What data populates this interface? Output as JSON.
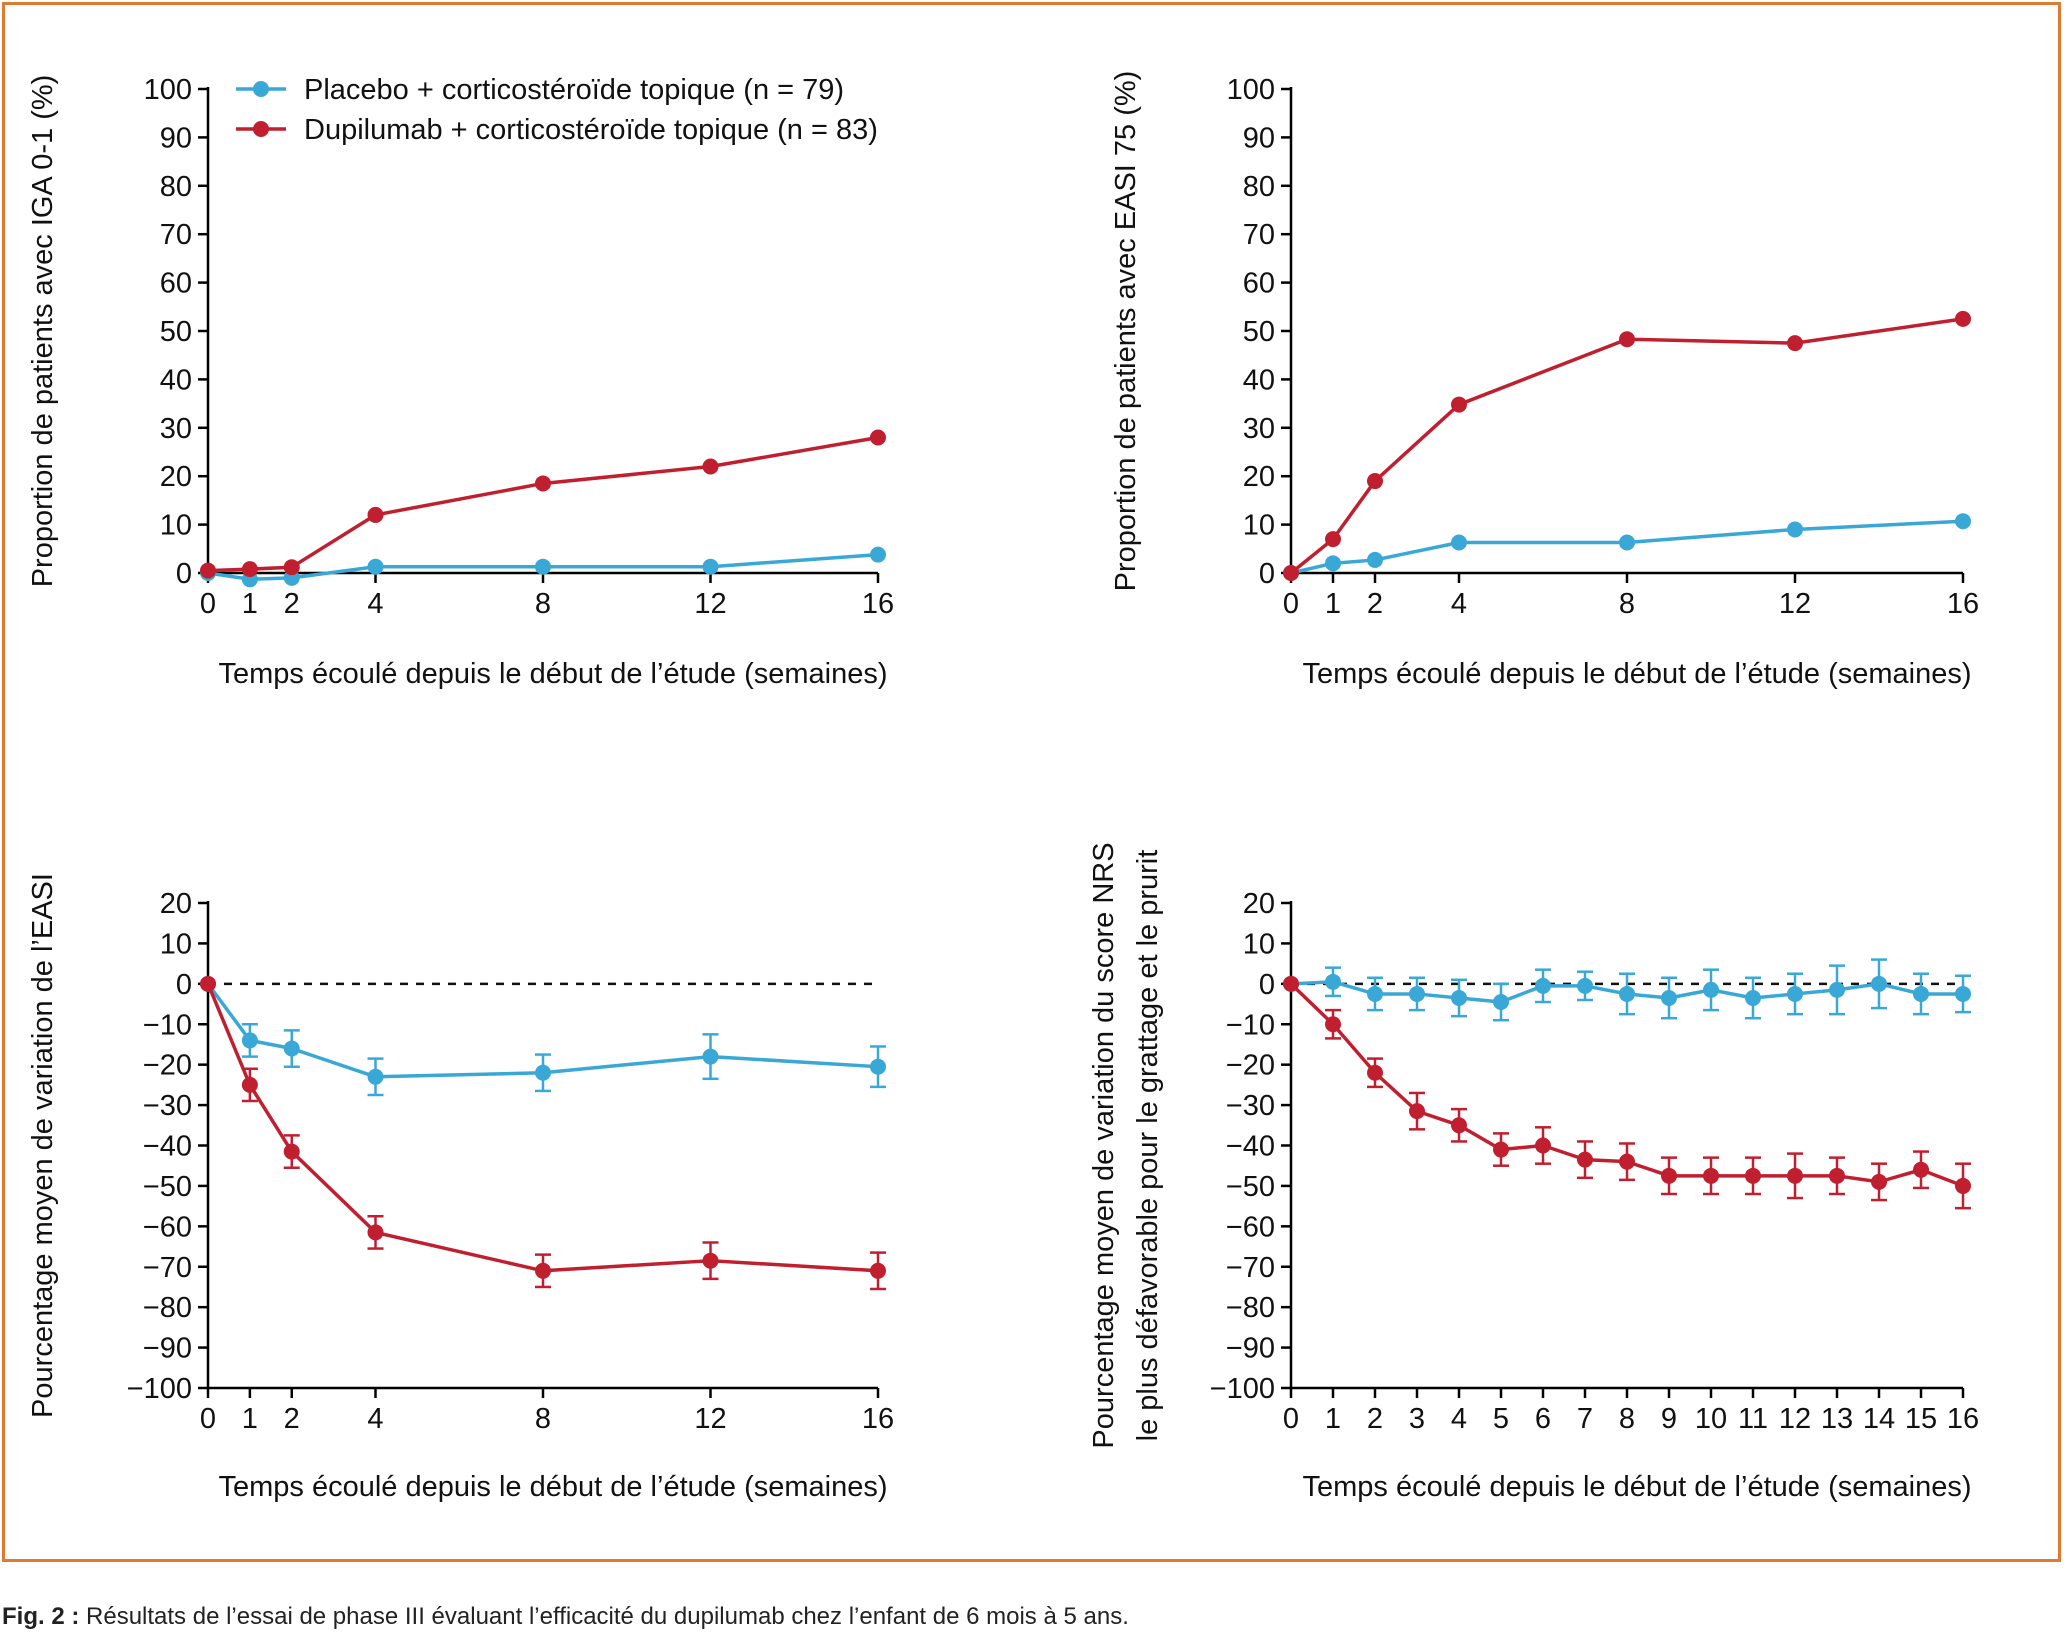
{
  "caption": {
    "label": "Fig. 2 :",
    "text": " Résultats de l’essai de phase III évaluant l’efficacité du dupilumab chez l’enfant de 6 mois à 5 ans."
  },
  "colors": {
    "placebo": "#3aa8d6",
    "dupilumab": "#c01f2f",
    "frame": "#e07a2e",
    "axis": "#000000"
  },
  "legend": [
    {
      "key": "placebo",
      "label": "Placebo + corticostéroïde topique (n = 79)"
    },
    {
      "key": "dupilumab",
      "label": "Dupilumab + corticostéroïde topique (n = 83)"
    }
  ],
  "chart_data": [
    {
      "type": "line",
      "ylabel": [
        "Proportion de patients avec IGA 0-1 (%)"
      ],
      "xlabel": "Temps écoulé depuis le début de l’étude (semaines)",
      "xlim": [
        0,
        16
      ],
      "ylim": [
        0,
        100
      ],
      "xticks": [
        0,
        1,
        2,
        4,
        8,
        12,
        16
      ],
      "yticks": [
        0,
        10,
        20,
        30,
        40,
        50,
        60,
        70,
        80,
        90,
        100
      ],
      "zero_line": false,
      "series": [
        {
          "key": "placebo",
          "x": [
            0,
            1,
            2,
            4,
            8,
            12,
            16
          ],
          "y": [
            0,
            -1.3,
            -1,
            1.3,
            1.3,
            1.3,
            3.8
          ]
        },
        {
          "key": "dupilumab",
          "x": [
            0,
            1,
            2,
            4,
            8,
            12,
            16
          ],
          "y": [
            0.5,
            0.8,
            1.2,
            12,
            18.5,
            22,
            28
          ]
        }
      ]
    },
    {
      "type": "line",
      "ylabel": [
        "Proportion de patients avec EASI 75 (%)"
      ],
      "xlabel": "Temps écoulé depuis le début de l’étude (semaines)",
      "xlim": [
        0,
        16
      ],
      "ylim": [
        0,
        100
      ],
      "xticks": [
        0,
        1,
        2,
        4,
        8,
        12,
        16
      ],
      "yticks": [
        0,
        10,
        20,
        30,
        40,
        50,
        60,
        70,
        80,
        90,
        100
      ],
      "zero_line": false,
      "series": [
        {
          "key": "placebo",
          "x": [
            0,
            1,
            2,
            4,
            8,
            12,
            16
          ],
          "y": [
            0,
            2,
            2.7,
            6.3,
            6.3,
            9,
            10.7
          ]
        },
        {
          "key": "dupilumab",
          "x": [
            0,
            1,
            2,
            4,
            8,
            12,
            16
          ],
          "y": [
            0,
            7,
            19,
            34.8,
            48.3,
            47.5,
            52.5
          ]
        }
      ]
    },
    {
      "type": "line",
      "ylabel": [
        "Pourcentage moyen de variation de l’EASI"
      ],
      "xlabel": "Temps écoulé depuis le début de l’étude (semaines)",
      "xlim": [
        0,
        16
      ],
      "ylim": [
        -100,
        20
      ],
      "xticks": [
        0,
        1,
        2,
        4,
        8,
        12,
        16
      ],
      "yticks": [
        20,
        10,
        0,
        -10,
        -20,
        -30,
        -40,
        -50,
        -60,
        -70,
        -80,
        -90,
        -100
      ],
      "zero_line": true,
      "series": [
        {
          "key": "placebo",
          "x": [
            0,
            1,
            2,
            4,
            8,
            12,
            16
          ],
          "y": [
            0,
            -14,
            -16,
            -23,
            -22,
            -18,
            -20.5
          ],
          "err": [
            0,
            4,
            4.5,
            4.5,
            4.5,
            5.5,
            5
          ]
        },
        {
          "key": "dupilumab",
          "x": [
            0,
            1,
            2,
            4,
            8,
            12,
            16
          ],
          "y": [
            0,
            -25,
            -41.5,
            -61.5,
            -71,
            -68.5,
            -71
          ],
          "err": [
            0,
            4,
            4,
            4,
            4,
            4.5,
            4.5
          ]
        }
      ]
    },
    {
      "type": "line",
      "ylabel": [
        "Pourcentage moyen de variation du score NRS",
        "le plus défavorable pour le grattage et le prurit"
      ],
      "xlabel": "Temps écoulé depuis le début de l’étude (semaines)",
      "xlim": [
        0,
        16
      ],
      "ylim": [
        -100,
        20
      ],
      "xticks": [
        0,
        1,
        2,
        3,
        4,
        5,
        6,
        7,
        8,
        9,
        10,
        11,
        12,
        13,
        14,
        15,
        16
      ],
      "yticks": [
        20,
        10,
        0,
        -10,
        -20,
        -30,
        -40,
        -50,
        -60,
        -70,
        -80,
        -90,
        -100
      ],
      "zero_line": true,
      "series": [
        {
          "key": "placebo",
          "x": [
            0,
            1,
            2,
            3,
            4,
            5,
            6,
            7,
            8,
            9,
            10,
            11,
            12,
            13,
            14,
            15,
            16
          ],
          "y": [
            0,
            0.5,
            -2.5,
            -2.5,
            -3.5,
            -4.5,
            -0.5,
            -0.5,
            -2.5,
            -3.5,
            -1.5,
            -3.5,
            -2.5,
            -1.5,
            0,
            -2.5,
            -2.5
          ],
          "err": [
            0,
            3.5,
            4,
            4,
            4.5,
            4.5,
            4,
            3.5,
            5,
            5,
            5,
            5,
            5,
            6,
            6,
            5,
            4.5
          ]
        },
        {
          "key": "dupilumab",
          "x": [
            0,
            1,
            2,
            3,
            4,
            5,
            6,
            7,
            8,
            9,
            10,
            11,
            12,
            13,
            14,
            15,
            16
          ],
          "y": [
            0,
            -10,
            -22,
            -31.5,
            -35,
            -41,
            -40,
            -43.5,
            -44,
            -47.5,
            -47.5,
            -47.5,
            -47.5,
            -47.5,
            -49,
            -46,
            -50
          ],
          "err": [
            0,
            3.5,
            3.5,
            4.5,
            4,
            4,
            4.5,
            4.5,
            4.5,
            4.5,
            4.5,
            4.5,
            5.5,
            4.5,
            4.5,
            4.5,
            5.5
          ]
        }
      ]
    }
  ]
}
